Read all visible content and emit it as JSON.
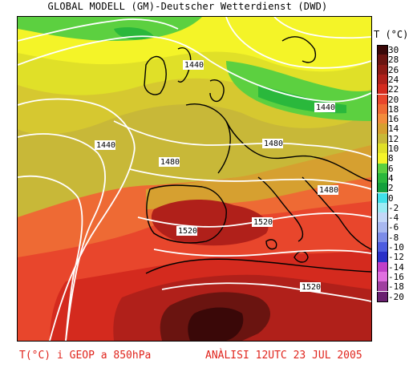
{
  "title": "GLOBAL MODELL (GM)-Deutscher Wetterdienst (DWD)",
  "legend": {
    "title": "T (°C)",
    "steps": [
      {
        "label": "30",
        "color": "#3a0808"
      },
      {
        "label": "28",
        "color": "#6a1410"
      },
      {
        "label": "26",
        "color": "#8c1a14"
      },
      {
        "label": "24",
        "color": "#b0201a"
      },
      {
        "label": "22",
        "color": "#d42a1e"
      },
      {
        "label": "20",
        "color": "#e8462c"
      },
      {
        "label": "18",
        "color": "#ee6a34"
      },
      {
        "label": "16",
        "color": "#f28c3c"
      },
      {
        "label": "14",
        "color": "#d6a030"
      },
      {
        "label": "12",
        "color": "#c8b838"
      },
      {
        "label": "10",
        "color": "#e0e028"
      },
      {
        "label": "8",
        "color": "#f4f428"
      },
      {
        "label": "6",
        "color": "#5cd040"
      },
      {
        "label": "4",
        "color": "#2ab83c"
      },
      {
        "label": "2",
        "color": "#14a03c"
      },
      {
        "label": "0",
        "color": "#40e0e8"
      },
      {
        "label": "-2",
        "color": "#9cecf4"
      },
      {
        "label": "-4",
        "color": "#c4d8f8"
      },
      {
        "label": "-6",
        "color": "#a8b8f0"
      },
      {
        "label": "-8",
        "color": "#7c8ce8"
      },
      {
        "label": "-10",
        "color": "#4c5ce0"
      },
      {
        "label": "-12",
        "color": "#2a30c8"
      },
      {
        "label": "-14",
        "color": "#c040c8"
      },
      {
        "label": "-16",
        "color": "#e070e0"
      },
      {
        "label": "-18",
        "color": "#a040a0"
      },
      {
        "label": "-20",
        "color": "#6a2070"
      }
    ]
  },
  "contour_labels": [
    "1440",
    "1440",
    "1440",
    "1480",
    "1480",
    "1480",
    "1520",
    "1520",
    "1520"
  ],
  "footer": {
    "left": "T(°C) i GEOP a 850hPa",
    "right": "ANÀLISI 12UTC 23 JUL 2005"
  }
}
